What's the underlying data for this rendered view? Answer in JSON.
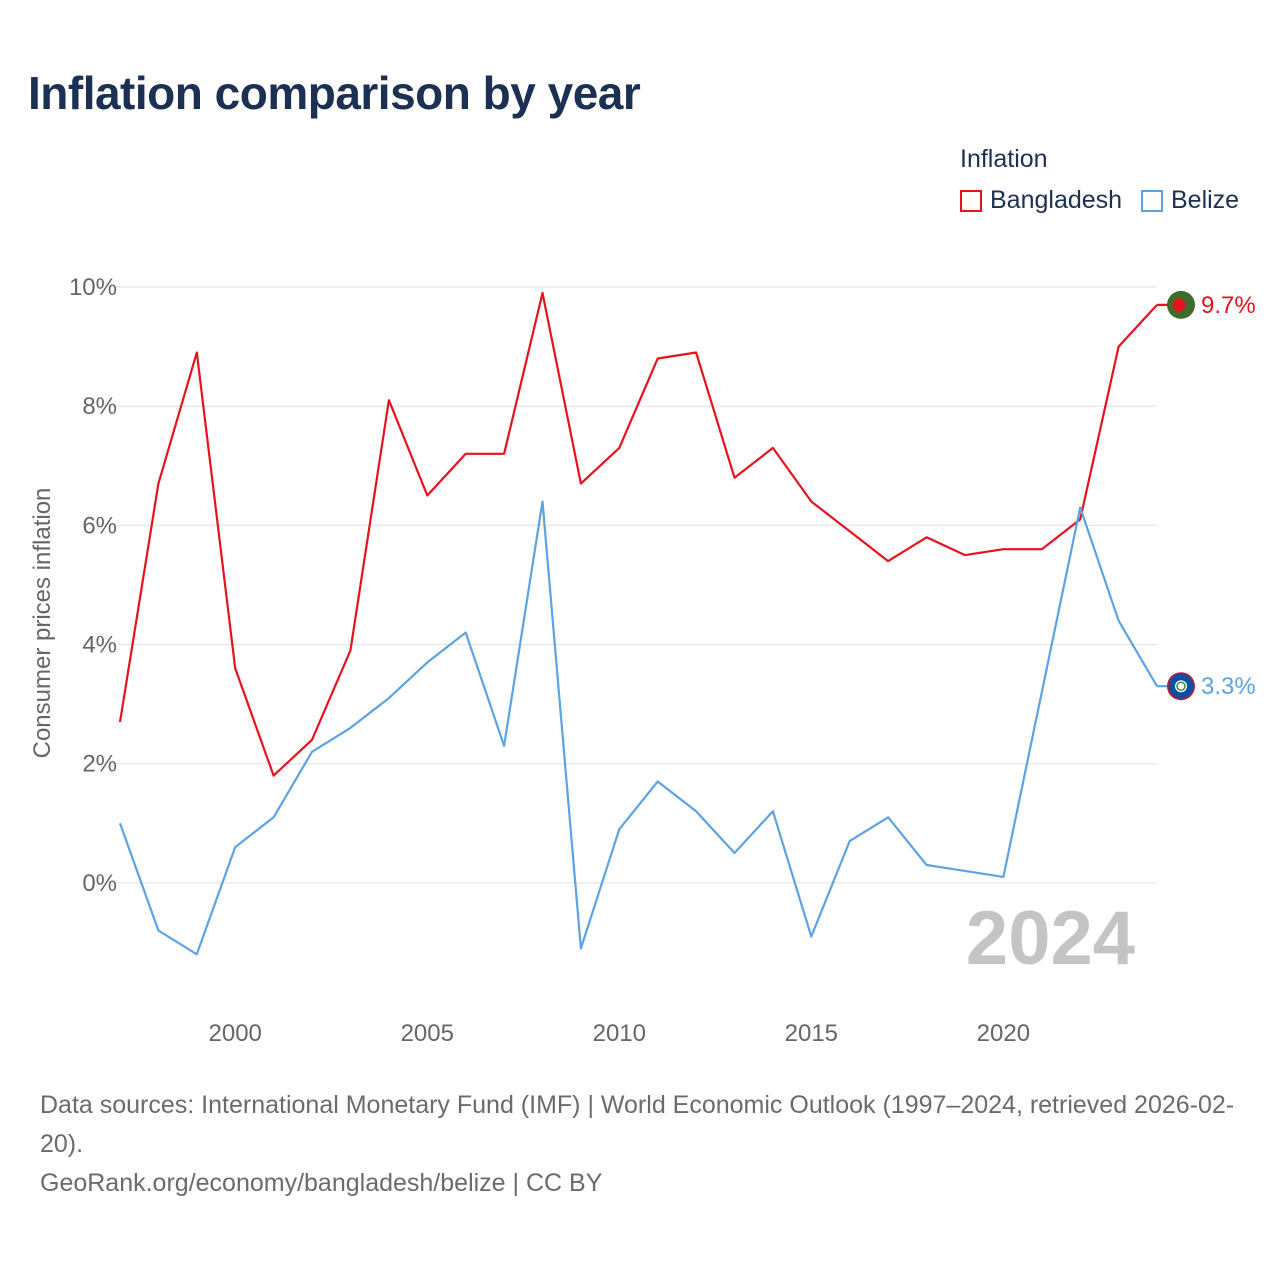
{
  "title": "Inflation comparison by year",
  "legend": {
    "title": "Inflation",
    "items": [
      {
        "label": "Bangladesh",
        "color": "#e8121c"
      },
      {
        "label": "Belize",
        "color": "#5ba3e3"
      }
    ]
  },
  "chart_data": {
    "type": "line",
    "title": "Inflation comparison by year",
    "xlabel": "",
    "ylabel": "Consumer prices inflation",
    "ylim": [
      -2,
      10
    ],
    "xlim": [
      1997,
      2024
    ],
    "grid": true,
    "y_ticks": [
      0,
      2,
      4,
      6,
      8,
      10
    ],
    "y_tick_labels": [
      "0%",
      "2%",
      "4%",
      "6%",
      "8%",
      "10%"
    ],
    "x_ticks": [
      2000,
      2005,
      2010,
      2015,
      2020
    ],
    "x_tick_labels": [
      "2000",
      "2005",
      "2010",
      "2015",
      "2020"
    ],
    "year_watermark": "2024",
    "x": [
      1997,
      1998,
      1999,
      2000,
      2001,
      2002,
      2003,
      2004,
      2005,
      2006,
      2007,
      2008,
      2009,
      2010,
      2011,
      2012,
      2013,
      2014,
      2015,
      2016,
      2017,
      2018,
      2019,
      2020,
      2021,
      2022,
      2023,
      2024
    ],
    "series": [
      {
        "name": "Bangladesh",
        "color": "#e8121c",
        "end_label": "9.7%",
        "end_marker": "bangladesh-flag",
        "values": [
          2.7,
          6.7,
          8.9,
          3.6,
          1.8,
          2.4,
          3.9,
          8.1,
          6.5,
          7.2,
          7.2,
          9.9,
          6.7,
          7.3,
          8.8,
          8.9,
          6.8,
          7.3,
          6.4,
          5.9,
          5.4,
          5.8,
          5.5,
          5.6,
          5.6,
          6.1,
          9.0,
          9.7
        ]
      },
      {
        "name": "Belize",
        "color": "#5ba3e3",
        "end_label": "3.3%",
        "end_marker": "belize-flag",
        "values": [
          1.0,
          -0.8,
          -1.2,
          0.6,
          1.1,
          2.2,
          2.6,
          3.1,
          3.7,
          4.2,
          2.3,
          6.4,
          -1.1,
          0.9,
          1.7,
          1.2,
          0.5,
          1.2,
          -0.9,
          0.7,
          1.1,
          0.3,
          0.2,
          0.1,
          3.2,
          6.3,
          4.4,
          3.3
        ]
      }
    ]
  },
  "footer": {
    "sources": "Data sources: International Monetary Fund (IMF) | World Economic Outlook (1997–2024, retrieved 2026-02-20).",
    "credit": "GeoRank.org/economy/bangladesh/belize | CC BY"
  }
}
